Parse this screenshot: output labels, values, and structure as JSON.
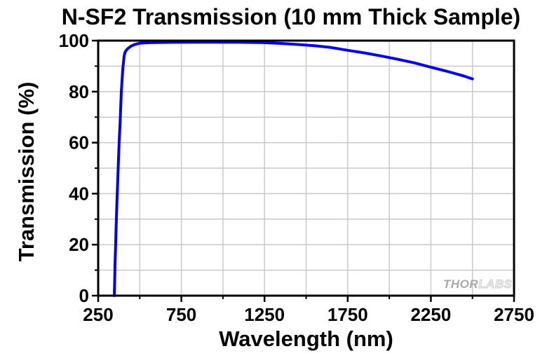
{
  "title": "N-SF2 Transmission (10 mm Thick Sample)",
  "watermark": {
    "part1": "THOR",
    "part2": "LABS"
  },
  "colors": {
    "curve": "#0000EE",
    "grid": "#C9C9C9",
    "axis": "#000000",
    "text": "#000000",
    "watermark_solid": "#A9A9AD",
    "watermark_outline": "#C9C9CD",
    "background": "#FFFFFF"
  },
  "chart_data": {
    "type": "line",
    "title": "N-SF2 Transmission (10 mm Thick Sample)",
    "xlabel": "Wavelength (nm)",
    "ylabel": "Transmission (%)",
    "xlim": [
      250,
      2750
    ],
    "ylim": [
      0,
      100
    ],
    "x_major_ticks": [
      250,
      750,
      1250,
      1750,
      2250,
      2750
    ],
    "x_minor_ticks": [
      500,
      1000,
      1500,
      2000,
      2500
    ],
    "y_major_ticks": [
      0,
      20,
      40,
      60,
      80,
      100
    ],
    "y_minor_ticks": [
      10,
      30,
      50,
      70,
      90
    ],
    "x_gridlines": [
      500,
      750,
      1000,
      1250,
      1500,
      1750,
      2000,
      2250,
      2500
    ],
    "y_gridlines": [
      10,
      20,
      30,
      40,
      50,
      60,
      70,
      80,
      90
    ],
    "grid": true,
    "legend": "none",
    "series": [
      {
        "name": "N-SF2 transmission, 10 mm thick sample",
        "color": "#0000EE",
        "points": [
          [
            347,
            0
          ],
          [
            350,
            8
          ],
          [
            352,
            14
          ],
          [
            355,
            20
          ],
          [
            358,
            27
          ],
          [
            361,
            33
          ],
          [
            364,
            39
          ],
          [
            368,
            46
          ],
          [
            372,
            53
          ],
          [
            376,
            60
          ],
          [
            381,
            67
          ],
          [
            385,
            73
          ],
          [
            389,
            80
          ],
          [
            394,
            85
          ],
          [
            398,
            89
          ],
          [
            402,
            91.5
          ],
          [
            406,
            94
          ],
          [
            412,
            95.5
          ],
          [
            420,
            96.3
          ],
          [
            427,
            96.8
          ],
          [
            440,
            97.5
          ],
          [
            452,
            98
          ],
          [
            470,
            98.5
          ],
          [
            503,
            99
          ],
          [
            560,
            99.2
          ],
          [
            700,
            99.35
          ],
          [
            900,
            99.4
          ],
          [
            1100,
            99.35
          ],
          [
            1250,
            99.2
          ],
          [
            1350,
            98.9
          ],
          [
            1450,
            98.5
          ],
          [
            1550,
            98
          ],
          [
            1650,
            97.3
          ],
          [
            1750,
            96.2
          ],
          [
            1850,
            95.2
          ],
          [
            1950,
            94
          ],
          [
            2050,
            92.7
          ],
          [
            2150,
            91.3
          ],
          [
            2250,
            89.6
          ],
          [
            2350,
            87.9
          ],
          [
            2450,
            86.1
          ],
          [
            2500,
            85
          ]
        ]
      }
    ]
  }
}
